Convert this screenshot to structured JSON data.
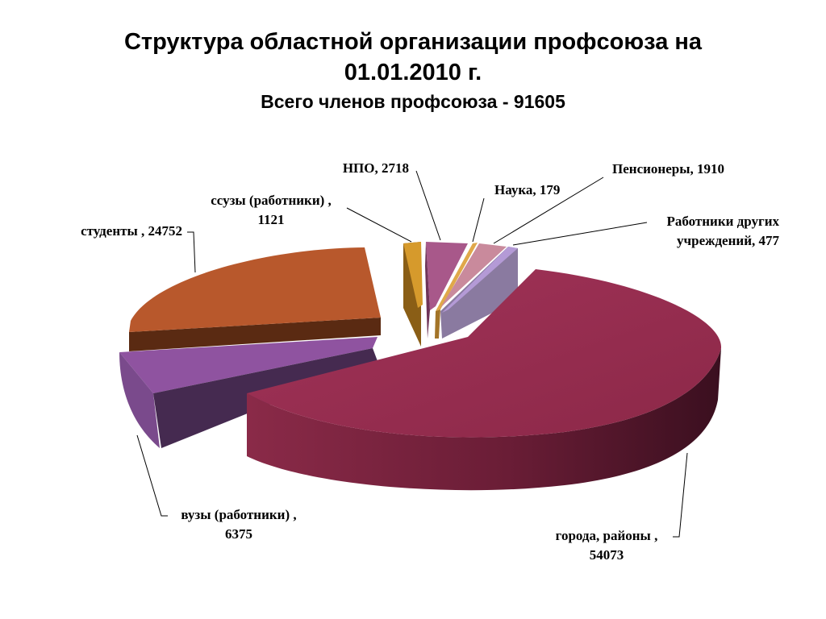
{
  "title_line1": "Структура областной организации профсоюза на",
  "title_line2": "01.01.2010 г.",
  "subtitle": "Всего членов профсоюза - 91605",
  "chart_data": {
    "type": "pie",
    "variant": "3d-exploded",
    "title": "Структура областной организации профсоюза на 01.01.2010 г.",
    "subtitle": "Всего членов профсоюза - 91605",
    "total": 91605,
    "slices": [
      {
        "label": "города, районы",
        "value": 54073,
        "color": "#9b2f52"
      },
      {
        "label": "вузы (работники)",
        "value": 6375,
        "color": "#8f53a0"
      },
      {
        "label": "студенты",
        "value": 24752,
        "color": "#b8582c"
      },
      {
        "label": "ссузы (работники)",
        "value": 1121,
        "color": "#d69a2c"
      },
      {
        "label": "НПО",
        "value": 2718,
        "color": "#a8588a"
      },
      {
        "label": "Наука",
        "value": 179,
        "color": "#e0a84a"
      },
      {
        "label": "Пенсионеры",
        "value": 1910,
        "color": "#c98a9c"
      },
      {
        "label": "Работники других учреждений",
        "value": 477,
        "color": "#b49ad6"
      }
    ],
    "data_labels": [
      {
        "lines": [
          "НПО, 2718"
        ]
      },
      {
        "lines": [
          "Наука, 179"
        ]
      },
      {
        "lines": [
          "Пенсионеры, 1910"
        ]
      },
      {
        "lines": [
          "Работники других",
          "учреждений, 477"
        ]
      },
      {
        "lines": [
          "ссузы (работники) ,",
          "1121"
        ]
      },
      {
        "lines": [
          "студенты , 24752"
        ]
      },
      {
        "lines": [
          "вузы (работники) ,",
          "6375"
        ]
      },
      {
        "lines": [
          "города, районы ,",
          "54073"
        ]
      }
    ]
  }
}
